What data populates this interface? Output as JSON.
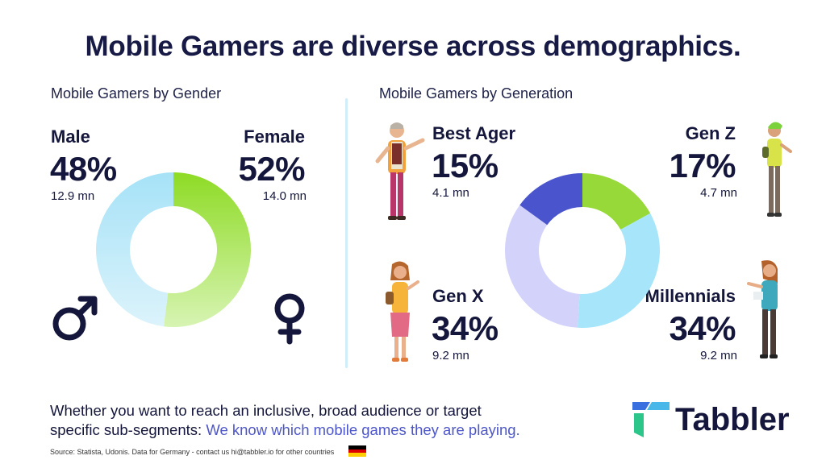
{
  "title": "Mobile Gamers are diverse across demographics.",
  "gender": {
    "heading": "Mobile Gamers by Gender",
    "male": {
      "label": "Male",
      "pct": "48%",
      "mn": "12.9 mn",
      "icon": "male-symbol-icon"
    },
    "female": {
      "label": "Female",
      "pct": "52%",
      "mn": "14.0 mn",
      "icon": "female-symbol-icon"
    }
  },
  "generation": {
    "heading": "Mobile Gamers by Generation",
    "best_ager": {
      "label": "Best Ager",
      "pct": "15%",
      "mn": "4.1 mn"
    },
    "gen_z": {
      "label": "Gen Z",
      "pct": "17%",
      "mn": "4.7 mn"
    },
    "gen_x": {
      "label": "Gen X",
      "pct": "34%",
      "mn": "9.2 mn"
    },
    "millennials": {
      "label": "Millennials",
      "pct": "34%",
      "mn": "9.2 mn"
    }
  },
  "chart_data": [
    {
      "type": "pie",
      "variant": "donut",
      "title": "Mobile Gamers by Gender",
      "categories": [
        "Female",
        "Male"
      ],
      "values": [
        52,
        48
      ],
      "values_mn": [
        14.0,
        12.9
      ],
      "colors": [
        "#8fdc2c",
        "#a7e3f6"
      ]
    },
    {
      "type": "pie",
      "variant": "donut",
      "title": "Mobile Gamers by Generation",
      "categories": [
        "Gen Z",
        "Millennials",
        "Gen X",
        "Best Ager"
      ],
      "values": [
        17,
        34,
        34,
        15
      ],
      "values_mn": [
        4.7,
        9.2,
        9.2,
        4.1
      ],
      "colors": [
        "#96d939",
        "#a7e5fb",
        "#d3d2fb",
        "#4a55cd"
      ]
    }
  ],
  "footer": {
    "line1": "Whether you want to reach an inclusive, broad audience or target",
    "line2_plain": "specific sub-segments: ",
    "line2_highlight": "We know which mobile games they are playing.",
    "source": "Source: Statista, Udonis. Data for Germany - contact us hi@tabbler.io for other countries",
    "brand": "Tabbler",
    "flag_colors": [
      "#000000",
      "#dd0000",
      "#ffce00"
    ]
  }
}
